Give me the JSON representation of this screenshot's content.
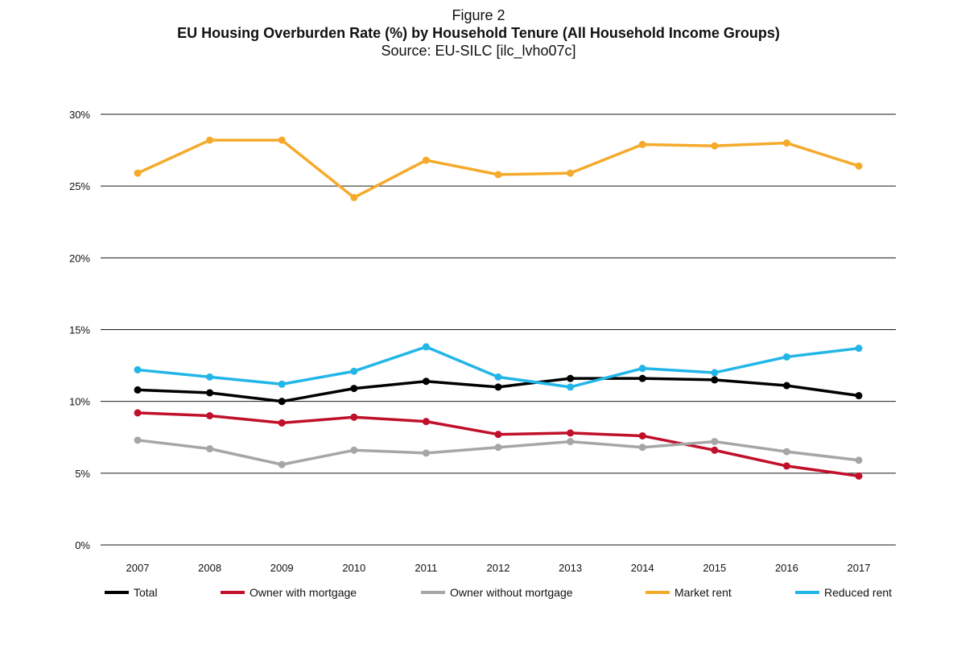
{
  "header": {
    "label": "Figure 2",
    "title": "EU Housing Overburden Rate (%) by Household Tenure (All Household Income Groups)",
    "source": "Source: EU-SILC [ilc_lvho07c]"
  },
  "chart_data": {
    "type": "line",
    "title": "EU Housing Overburden Rate (%) by Household Tenure (All Household Income Groups)",
    "xlabel": "",
    "ylabel": "",
    "ylim": [
      0,
      30
    ],
    "yticks": [
      {
        "value": 0,
        "label": "0%"
      },
      {
        "value": 5,
        "label": "5%"
      },
      {
        "value": 10,
        "label": "10%"
      },
      {
        "value": 15,
        "label": "15%"
      },
      {
        "value": 20,
        "label": "20%"
      },
      {
        "value": 25,
        "label": "25%"
      },
      {
        "value": 30,
        "label": "30%"
      }
    ],
    "grid": true,
    "legend_position": "bottom",
    "x": [
      "2007",
      "2008",
      "2009",
      "2010",
      "2011",
      "2012",
      "2013",
      "2014",
      "2015",
      "2016",
      "2017"
    ],
    "series": [
      {
        "name": "Total",
        "color": "#000000",
        "values": [
          10.8,
          10.6,
          10.0,
          10.9,
          11.4,
          11.0,
          11.6,
          11.6,
          11.5,
          11.1,
          10.4
        ]
      },
      {
        "name": "Owner with mortgage",
        "color": "#c0102a",
        "values": [
          9.2,
          9.0,
          8.5,
          8.9,
          8.6,
          7.7,
          7.8,
          7.6,
          6.6,
          5.5,
          4.8
        ]
      },
      {
        "name": "Owner without mortgage",
        "color": "#a6a6a6",
        "values": [
          7.3,
          6.7,
          5.6,
          6.6,
          6.4,
          6.8,
          7.2,
          6.8,
          7.2,
          6.5,
          5.9
        ]
      },
      {
        "name": "Market rent",
        "color": "#f5aa2b",
        "values": [
          25.9,
          28.2,
          28.2,
          24.2,
          26.8,
          25.8,
          25.9,
          27.9,
          27.8,
          28.0,
          26.4
        ]
      },
      {
        "name": "Reduced rent",
        "color": "#22b6e8",
        "values": [
          12.2,
          11.7,
          11.2,
          12.1,
          13.8,
          11.7,
          11.0,
          12.3,
          12.0,
          13.1,
          13.7
        ]
      }
    ]
  }
}
